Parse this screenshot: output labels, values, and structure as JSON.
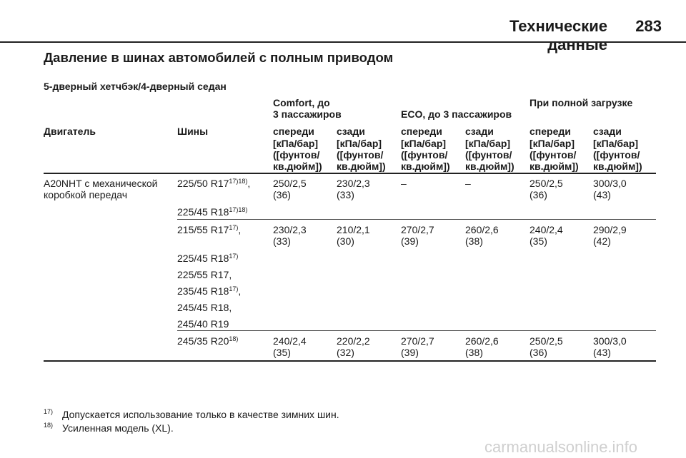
{
  "header": {
    "title": "Технические данные",
    "page": "283"
  },
  "section_title": "Давление в шинах автомобилей с полным приводом",
  "subtitle": "5-дверный хетчбэк/4-дверный седан",
  "groups": {
    "comfort": "Comfort, до\n3 пассажиров",
    "eco": "ECO, до 3 пассажиров",
    "full": "При полной загрузке"
  },
  "cols": {
    "engine": "Двигатель",
    "tires": "Шины",
    "front": "спереди",
    "rear": "сзади"
  },
  "unit": "[кПа/бар]\n([фунтов/\nкв.дюйм])",
  "engine": "A20NHT с механической\nкоробкой передач",
  "rows": [
    {
      "tires": [
        {
          "t": "225/50 R17",
          "sup": "17)18)",
          "suffix": ","
        },
        {
          "t": "225/45 R18",
          "sup": "17)18)",
          "suffix": ""
        }
      ],
      "values": [
        "250/2,5\n(36)",
        "230/2,3\n(33)",
        "–",
        "–",
        "250/2,5\n(36)",
        "300/3,0\n(43)"
      ]
    },
    {
      "tires": [
        {
          "t": "215/55 R17",
          "sup": "17)",
          "suffix": ","
        },
        {
          "t": "225/45 R18",
          "sup": "17)",
          "suffix": ""
        },
        {
          "t": "225/55 R17,",
          "sup": "",
          "suffix": ""
        },
        {
          "t": "235/45 R18",
          "sup": "17)",
          "suffix": ","
        },
        {
          "t": "245/45 R18,",
          "sup": "",
          "suffix": ""
        },
        {
          "t": "245/40 R19",
          "sup": "",
          "suffix": ""
        }
      ],
      "values": [
        "230/2,3\n(33)",
        "210/2,1\n(30)",
        "270/2,7\n(39)",
        "260/2,6\n(38)",
        "240/2,4\n(35)",
        "290/2,9\n(42)"
      ]
    },
    {
      "tires": [
        {
          "t": "245/35 R20",
          "sup": "18)",
          "suffix": ""
        }
      ],
      "values": [
        "240/2,4\n(35)",
        "220/2,2\n(32)",
        "270/2,7\n(39)",
        "260/2,6\n(38)",
        "250/2,5\n(36)",
        "300/3,0\n(43)"
      ]
    }
  ],
  "footnotes": [
    {
      "num": "17)",
      "text": "Допускается использование только в качестве зимних шин."
    },
    {
      "num": "18)",
      "text": "Усиленная модель (XL)."
    }
  ],
  "watermark": "carmanualsonline.info"
}
